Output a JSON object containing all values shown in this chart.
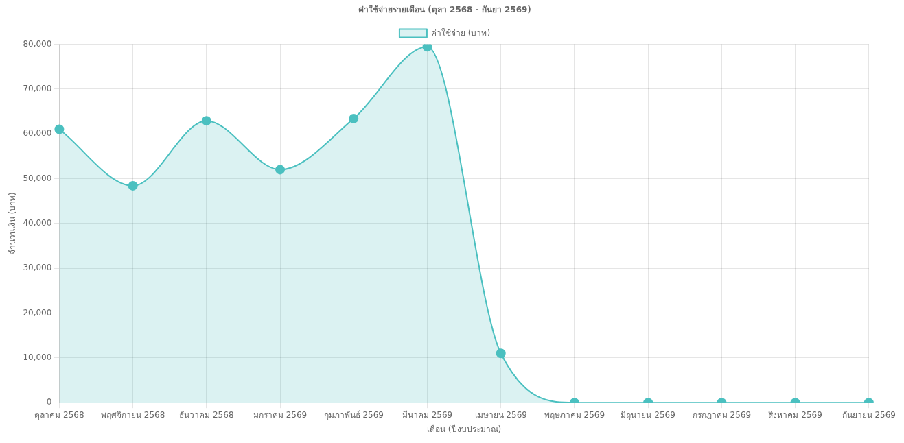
{
  "chart_data": {
    "type": "area",
    "title": "ค่าใช้จ่ายรายเดือน (ตุลา 2568 - กันยา 2569)",
    "xlabel": "เดือน (ปีงบประมาณ)",
    "ylabel": "จำนวนเงิน (บาท)",
    "categories": [
      "ตุลาคม 2568",
      "พฤศจิกายน 2568",
      "ธันวาคม 2568",
      "มกราคม 2569",
      "กุมภาพันธ์ 2569",
      "มีนาคม 2569",
      "เมษายน 2569",
      "พฤษภาคม 2569",
      "มิถุนายน 2569",
      "กรกฎาคม 2569",
      "สิงหาคม 2569",
      "กันยายน 2569"
    ],
    "series": [
      {
        "name": "ค่าใช้จ่าย (บาท)",
        "color": "#4bc0c0",
        "values": [
          61000,
          48400,
          62900,
          52000,
          63400,
          79400,
          11000,
          0,
          0,
          0,
          0,
          0
        ]
      }
    ],
    "ylim": [
      0,
      80000
    ],
    "yticks": [
      {
        "value": 0,
        "label": "0"
      },
      {
        "value": 10000,
        "label": "10,000"
      },
      {
        "value": 20000,
        "label": "20,000"
      },
      {
        "value": 30000,
        "label": "30,000"
      },
      {
        "value": 40000,
        "label": "40,000"
      },
      {
        "value": 50000,
        "label": "50,000"
      },
      {
        "value": 60000,
        "label": "60,000"
      },
      {
        "value": 70000,
        "label": "70,000"
      },
      {
        "value": 80000,
        "label": "80,000"
      }
    ],
    "grid": true,
    "legend": "top",
    "marker": "circle",
    "line_style": "solid"
  }
}
